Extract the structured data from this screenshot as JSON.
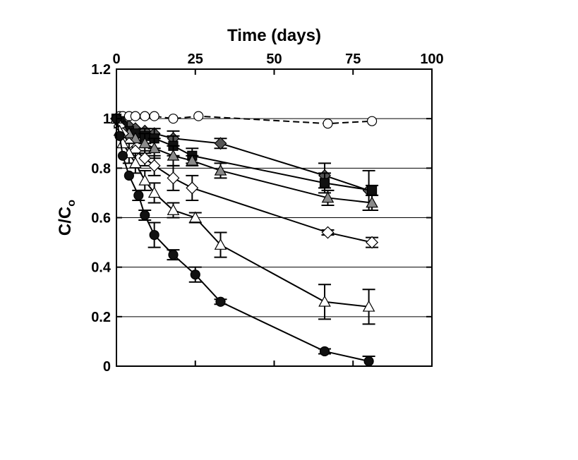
{
  "chart_data": {
    "type": "scatter",
    "title": "",
    "xlabel": "Time (days)",
    "ylabel": "C/C",
    "ylabel_subscript": "o",
    "xlim": [
      0,
      100
    ],
    "ylim": [
      0,
      1.2
    ],
    "x_ticks": [
      "0",
      "25",
      "50",
      "75",
      "100"
    ],
    "y_ticks": [
      "0",
      "0.2",
      "0.4",
      "0.6",
      "0.8",
      "1",
      "1.2"
    ],
    "x_axis_position": "top",
    "grid": "horizontal",
    "legend": "none",
    "series": [
      {
        "marker": "open-circle",
        "line": "dashed",
        "x": [
          0,
          1,
          2,
          4,
          6,
          9,
          12,
          18,
          26,
          67,
          81
        ],
        "y": [
          1.0,
          1.01,
          1.01,
          1.01,
          1.01,
          1.01,
          1.01,
          1.0,
          1.01,
          0.98,
          0.99
        ],
        "err": []
      },
      {
        "marker": "filled-diamond",
        "line": "solid",
        "x": [
          0,
          1,
          2,
          4,
          6,
          9,
          12,
          18,
          33,
          66,
          80
        ],
        "y": [
          1.0,
          0.99,
          0.98,
          0.97,
          0.96,
          0.95,
          0.94,
          0.92,
          0.9,
          0.77,
          0.71
        ],
        "err": [
          0,
          0,
          0,
          0,
          0,
          0,
          0,
          0.03,
          0.02,
          0.05,
          0.08
        ]
      },
      {
        "marker": "filled-square",
        "line": "solid",
        "x": [
          0,
          1,
          2,
          4,
          6,
          9,
          12,
          18,
          24,
          66,
          81
        ],
        "y": [
          1.0,
          0.99,
          0.97,
          0.95,
          0.94,
          0.93,
          0.92,
          0.89,
          0.85,
          0.74,
          0.71
        ],
        "err": [
          0,
          0,
          0,
          0,
          0,
          0.03,
          0.04,
          0.04,
          0.03,
          0.04,
          0.02
        ]
      },
      {
        "marker": "filled-triangle",
        "line": "solid",
        "x": [
          0,
          1,
          2,
          4,
          6,
          9,
          12,
          18,
          24,
          33,
          67,
          81
        ],
        "y": [
          1.0,
          0.98,
          0.96,
          0.94,
          0.92,
          0.9,
          0.88,
          0.85,
          0.83,
          0.79,
          0.68,
          0.66
        ],
        "err": [
          0,
          0,
          0,
          0,
          0,
          0.04,
          0.04,
          0.04,
          0.02,
          0.03,
          0.03,
          0.03
        ]
      },
      {
        "marker": "open-diamond",
        "line": "solid",
        "x": [
          0,
          1,
          2,
          4,
          6,
          9,
          12,
          18,
          24,
          67,
          81
        ],
        "y": [
          1.0,
          0.97,
          0.94,
          0.9,
          0.87,
          0.84,
          0.81,
          0.76,
          0.72,
          0.54,
          0.5
        ],
        "err": [
          0,
          0,
          0,
          0,
          0,
          0.03,
          0.04,
          0.05,
          0.05,
          0.01,
          0.02
        ]
      },
      {
        "marker": "open-triangle",
        "line": "solid",
        "x": [
          0,
          1,
          2,
          4,
          6,
          9,
          12,
          18,
          25,
          33,
          66,
          80
        ],
        "y": [
          1.0,
          0.95,
          0.9,
          0.86,
          0.82,
          0.75,
          0.7,
          0.63,
          0.6,
          0.49,
          0.26,
          0.24
        ],
        "err": [
          0,
          0,
          0,
          0.04,
          0.04,
          0.04,
          0.04,
          0.03,
          0.02,
          0.05,
          0.07,
          0.07
        ]
      },
      {
        "marker": "filled-circle",
        "line": "solid",
        "x": [
          0,
          1,
          2,
          4,
          7,
          9,
          12,
          18,
          25,
          33,
          66,
          80
        ],
        "y": [
          1.0,
          0.93,
          0.85,
          0.77,
          0.69,
          0.61,
          0.53,
          0.45,
          0.37,
          0.26,
          0.06,
          0.02
        ],
        "err": [
          0,
          0,
          0,
          0,
          0.02,
          0.02,
          0.05,
          0.02,
          0.03,
          0.01,
          0.01,
          0.02
        ]
      }
    ]
  }
}
